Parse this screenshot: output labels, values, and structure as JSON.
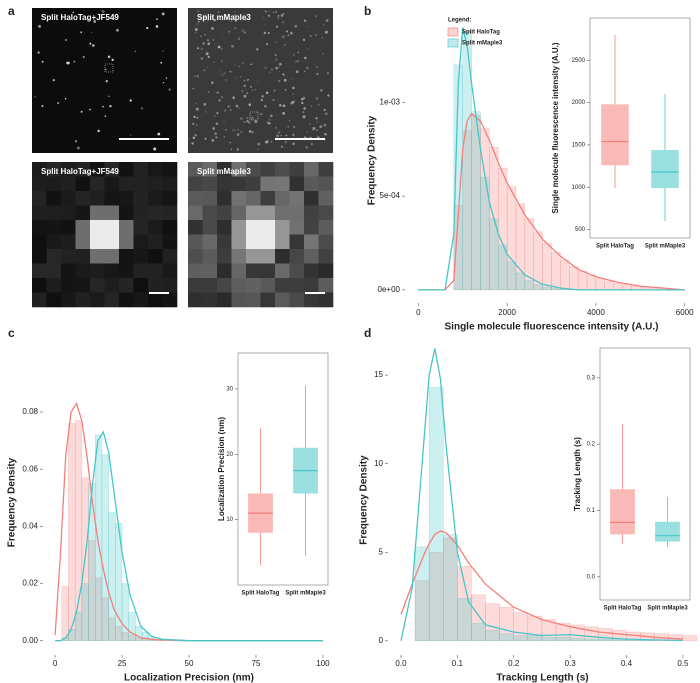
{
  "figure": {
    "panel_labels": [
      "a",
      "b",
      "c",
      "d"
    ],
    "images": [
      {
        "title": "Split HaloTag+JF549"
      },
      {
        "title": "Split mMaple3"
      },
      {
        "title": "Split HaloTag+JF549"
      },
      {
        "title": "Split mMaple3"
      }
    ]
  },
  "chart_data": [
    {
      "type": "histogram",
      "xlabel": "Single molecule fluorescence intensity (A.U.)",
      "ylabel": "Frequency Density",
      "xlim": [
        -300,
        6300
      ],
      "xticks": [
        0,
        2000,
        4000,
        6000
      ],
      "ylim": [
        -7e-05,
        0.00145
      ],
      "yticks": [
        {
          "value": 0,
          "label": "0e+00"
        },
        {
          "value": 0.0005,
          "label": "5e-04"
        },
        {
          "value": 0.001,
          "label": "1e-03"
        }
      ],
      "legend": {
        "title": "Legend:"
      },
      "bins": [
        800,
        1000,
        1200,
        1400,
        1600,
        1800,
        2000,
        2200,
        2400,
        2600,
        2800,
        3000,
        3200,
        3400,
        3600,
        3800,
        4000,
        4200,
        4400,
        4600,
        4800,
        5000,
        5200,
        5400,
        5600,
        5800,
        6000
      ],
      "series": [
        {
          "name": "Split HaloTag",
          "color": "#f47f7a",
          "values": [
            0.00045,
            0.00085,
            0.00093,
            0.00086,
            0.00076,
            0.00065,
            0.00055,
            0.00046,
            0.00038,
            0.00031,
            0.00025,
            0.0002,
            0.00016,
            0.000125,
            0.0001,
            8e-05,
            6e-05,
            4.5e-05,
            3.5e-05,
            2.7e-05,
            2e-05,
            1.5e-05,
            1e-05,
            8e-06,
            5e-06,
            3e-06
          ]
        },
        {
          "name": "Split mMaple3",
          "color": "#47c6c8",
          "values": [
            0.0012,
            0.00138,
            0.00095,
            0.0006,
            0.00038,
            0.00024,
            0.00015,
            9e-05,
            5e-05,
            3e-05,
            1.5e-05,
            1e-05,
            5e-06,
            3e-06,
            2e-06,
            1e-06,
            0,
            0,
            0,
            0,
            0,
            0,
            0,
            0,
            0,
            0
          ]
        }
      ],
      "density": {
        "x": [
          0,
          600,
          800,
          900,
          1000,
          1100,
          1200,
          1400,
          1600,
          1800,
          2000,
          2400,
          2800,
          3200,
          3600,
          4000,
          4500,
          5000,
          5500,
          6000
        ],
        "series": [
          {
            "values": [
              0,
              0,
              5e-05,
              0.0004,
              0.00075,
              0.0009,
              0.00094,
              0.0009,
              0.0008,
              0.00068,
              0.00057,
              0.0004,
              0.00027,
              0.00018,
              0.00011,
              7e-05,
              4e-05,
              2e-05,
              1e-05,
              0
            ]
          },
          {
            "values": [
              0,
              0,
              0.0003,
              0.0011,
              0.0014,
              0.0013,
              0.0011,
              0.00075,
              0.00047,
              0.0003,
              0.00019,
              8e-05,
              3e-05,
              1e-05,
              0,
              0,
              0,
              0,
              0,
              0
            ]
          }
        ]
      },
      "inset": {
        "type": "box",
        "ylabel": "Single molecule fluorescence intensity (A.U.)",
        "categories": [
          "Split HaloTag",
          "Split mMaple3"
        ],
        "ylim": [
          400,
          3000
        ],
        "yticks": [
          500,
          1000,
          1500,
          2000,
          2500
        ],
        "boxes": [
          {
            "low": 990,
            "q1": 1260,
            "median": 1540,
            "q3": 1980,
            "high": 2800
          },
          {
            "low": 600,
            "q1": 990,
            "median": 1180,
            "q3": 1440,
            "high": 2100
          }
        ]
      }
    },
    {
      "type": "histogram",
      "xlabel": "Localization Precision (nm)",
      "ylabel": "Frequency Density",
      "xlim": [
        -4.5,
        104.5
      ],
      "xticks": [
        0,
        25,
        50,
        75,
        100
      ],
      "ylim": [
        -0.005,
        0.1017
      ],
      "yticks": [
        {
          "value": 0,
          "label": "0.00"
        },
        {
          "value": 0.02,
          "label": "0.02"
        },
        {
          "value": 0.04,
          "label": "0.04"
        },
        {
          "value": 0.06,
          "label": "0.06"
        },
        {
          "value": 0.08,
          "label": "0.08"
        }
      ],
      "bins": [
        0,
        2.5,
        5,
        7.5,
        10,
        12.5,
        15,
        17.5,
        20,
        22.5,
        25,
        27.5,
        30,
        32.5,
        35,
        37.5,
        40
      ],
      "series": [
        {
          "color": "#f47f7a",
          "values": [
            0,
            0.019,
            0.076,
            0.077,
            0.057,
            0.035,
            0.022,
            0.015,
            0.008,
            0.005,
            0.003,
            0.002,
            0.001,
            0.001,
            0.0005,
            0.0003
          ]
        },
        {
          "color": "#47c6c8",
          "values": [
            0,
            0.001,
            0.004,
            0.01,
            0.02,
            0.055,
            0.072,
            0.065,
            0.045,
            0.041,
            0.02,
            0.01,
            0.005,
            0.003,
            0.001,
            0
          ]
        }
      ],
      "density": {
        "x": [
          0,
          2,
          4,
          6,
          8,
          10,
          12,
          14,
          16,
          18,
          20,
          22,
          25,
          28,
          32,
          36,
          40,
          50,
          60,
          100
        ],
        "series": [
          {
            "values": [
              0.002,
              0.03,
              0.065,
              0.08,
              0.083,
              0.077,
              0.064,
              0.048,
              0.035,
              0.025,
              0.017,
              0.011,
              0.006,
              0.003,
              0.001,
              0.0005,
              0.0002,
              0,
              0,
              0
            ]
          },
          {
            "values": [
              0,
              0,
              0.001,
              0.004,
              0.01,
              0.02,
              0.035,
              0.055,
              0.07,
              0.073,
              0.066,
              0.052,
              0.031,
              0.016,
              0.005,
              0.0015,
              0.0005,
              0,
              0,
              0
            ]
          }
        ]
      },
      "inset": {
        "type": "box",
        "ylabel": "Localization Precision (nm)",
        "categories": [
          "Split HaloTag",
          "Split mMaple3"
        ],
        "ylim": [
          0,
          35.5
        ],
        "yticks": [
          10,
          20,
          30
        ],
        "boxes": [
          {
            "low": 3,
            "q1": 8,
            "median": 11,
            "q3": 14,
            "high": 24
          },
          {
            "low": 4.5,
            "q1": 14,
            "median": 17.5,
            "q3": 21,
            "high": 30.5
          }
        ]
      }
    },
    {
      "type": "histogram",
      "xlabel": "Tracking Length (s)",
      "ylabel": "Frequency Density",
      "xlim": [
        -0.023,
        0.525
      ],
      "xticks": [
        {
          "value": 0,
          "label": "0.0"
        },
        0.1,
        0.2,
        0.3,
        0.4,
        0.5
      ],
      "ylim": [
        -0.8,
        16.7
      ],
      "yticks": [
        0,
        5,
        10,
        15
      ],
      "bins": [
        0.025,
        0.05,
        0.075,
        0.1,
        0.125,
        0.15,
        0.175,
        0.2,
        0.225,
        0.25,
        0.275,
        0.3,
        0.325,
        0.35,
        0.375,
        0.4,
        0.425,
        0.45,
        0.475,
        0.5,
        0.525
      ],
      "series": [
        {
          "color": "#f47f7a",
          "values": [
            3.4,
            5.0,
            5.8,
            4.2,
            2.6,
            2.1,
            1.9,
            1.6,
            1.4,
            1.2,
            1.0,
            0.9,
            0.8,
            0.7,
            0.6,
            0.5,
            0.45,
            0.4,
            0.35,
            0.3
          ]
        },
        {
          "color": "#47c6c8",
          "values": [
            5.3,
            14.3,
            6.0,
            2.4,
            1.0,
            0.6,
            0.4,
            0.3,
            0.3,
            0.2,
            0.2,
            0.15,
            0.1,
            0.1,
            0.1,
            0.05,
            0.05,
            0,
            0,
            0
          ]
        }
      ],
      "density": {
        "x": [
          0,
          0.02,
          0.04,
          0.05,
          0.06,
          0.07,
          0.08,
          0.1,
          0.12,
          0.15,
          0.2,
          0.25,
          0.3,
          0.35,
          0.4,
          0.45,
          0.5
        ],
        "series": [
          {
            "values": [
              1.5,
              3.2,
              4.8,
              5.5,
              6.0,
              6.2,
              6.1,
              5.4,
              4.4,
              3.2,
              1.9,
              1.2,
              0.8,
              0.5,
              0.35,
              0.2,
              0.1
            ]
          },
          {
            "values": [
              0,
              3.0,
              11,
              15,
              16.5,
              14.8,
              11,
              5,
              2.2,
              0.9,
              0.5,
              0.3,
              0.35,
              0.2,
              0.1,
              0.05,
              0.02
            ]
          }
        ]
      },
      "inset": {
        "type": "box",
        "ylabel": "Tracking Length (s)",
        "categories": [
          "Split HaloTag",
          "Split mMaple3"
        ],
        "ylim": [
          -0.035,
          0.345
        ],
        "yticks": [
          {
            "value": 0,
            "label": "0.0"
          },
          0.1,
          0.2,
          0.3
        ],
        "boxes": [
          {
            "low": 0.05,
            "q1": 0.064,
            "median": 0.082,
            "q3": 0.132,
            "high": 0.23
          },
          {
            "low": 0.045,
            "q1": 0.053,
            "median": 0.062,
            "q3": 0.083,
            "high": 0.12
          }
        ]
      }
    }
  ]
}
